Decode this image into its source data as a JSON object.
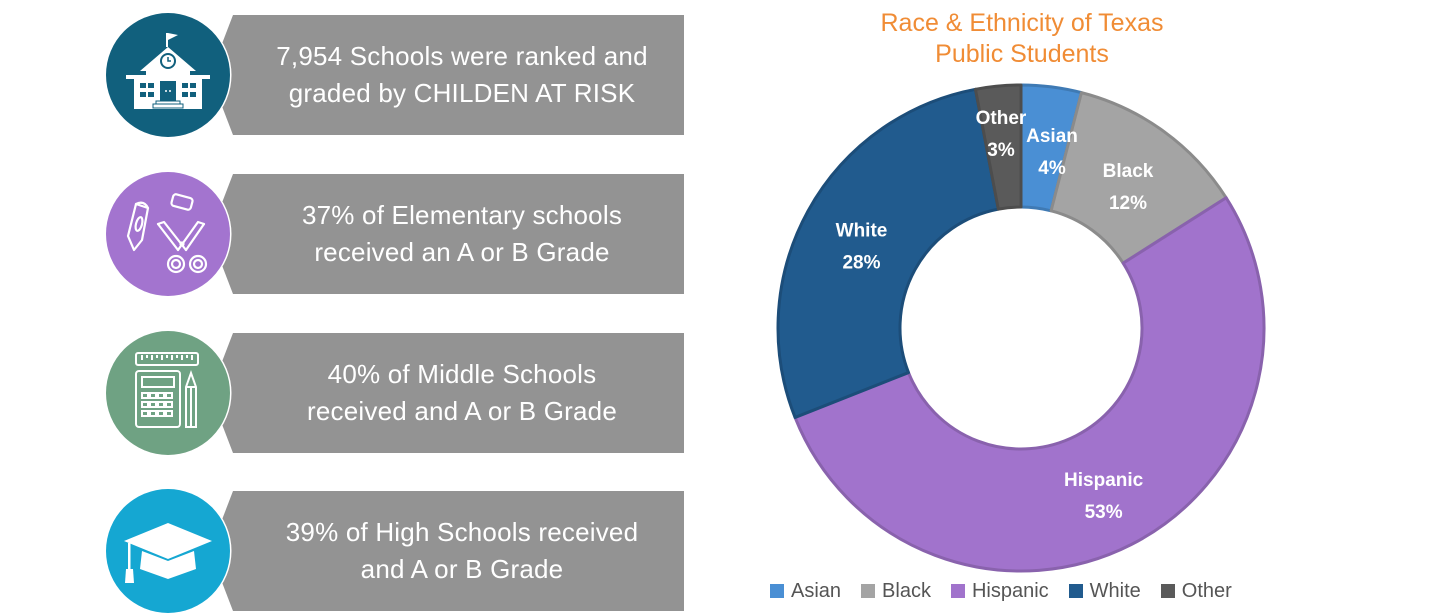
{
  "cards": [
    {
      "text_line1": "7,954 Schools were ranked and",
      "text_line2": "graded by CHILDEN AT RISK",
      "icon": "school-building-icon",
      "color": "#11607d"
    },
    {
      "text_line1": "37% of Elementary schools",
      "text_line2": "received an A or B Grade",
      "icon": "crayon-scissors-icon",
      "color": "#a374cf"
    },
    {
      "text_line1": "40% of Middle Schools",
      "text_line2": "received and A or B Grade",
      "icon": "calculator-ruler-icon",
      "color": "#6fa283"
    },
    {
      "text_line1": "39% of High Schools received",
      "text_line2": "and A or B Grade",
      "icon": "graduation-cap-icon",
      "color": "#15a7d2"
    }
  ],
  "chart_data": {
    "type": "pie",
    "variant": "donut",
    "title_line1": "Race & Ethnicity of Texas",
    "title_line2": "Public Students",
    "title_color": "#f08c35",
    "start": "top",
    "direction": "clockwise",
    "categories": [
      "Asian",
      "Black",
      "Hispanic",
      "White",
      "Other"
    ],
    "values": [
      4,
      12,
      53,
      28,
      3
    ],
    "data_labels": [
      "4%",
      "12%",
      "53%",
      "28%",
      "3%"
    ],
    "colors": [
      "#4a8fd4",
      "#a4a4a4",
      "#a173cc",
      "#215b8e",
      "#5a5a5a"
    ],
    "legend_position": "bottom"
  }
}
